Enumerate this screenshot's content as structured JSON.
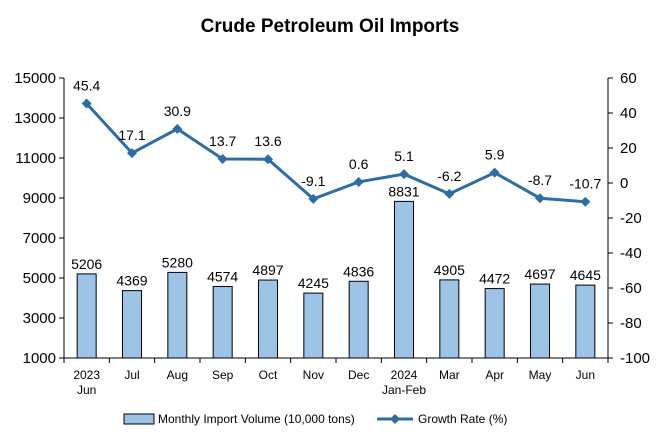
{
  "chart_data": {
    "type": "bar",
    "title": "Crude Petroleum Oil Imports",
    "categories": [
      [
        "2023",
        "Jun"
      ],
      [
        "Jul"
      ],
      [
        "Aug"
      ],
      [
        "Sep"
      ],
      [
        "Oct"
      ],
      [
        "Nov"
      ],
      [
        "Dec"
      ],
      [
        "2024",
        "Jan-Feb"
      ],
      [
        "Mar"
      ],
      [
        "Apr"
      ],
      [
        "May"
      ],
      [
        "Jun"
      ]
    ],
    "series": [
      {
        "name": "Monthly Import Volume (10,000 tons)",
        "type": "bar",
        "axis": "left",
        "values": [
          5206,
          4369,
          5280,
          4574,
          4897,
          4245,
          4836,
          8831,
          4905,
          4472,
          4697,
          4645
        ],
        "color": "#9dc3e6",
        "stroke": "#000000"
      },
      {
        "name": "Growth Rate (%)",
        "type": "line",
        "axis": "right",
        "values": [
          45.4,
          17.1,
          30.9,
          13.7,
          13.6,
          -9.1,
          0.6,
          5.1,
          -6.2,
          5.9,
          -8.7,
          -10.7
        ],
        "color": "#2e6ca4"
      }
    ],
    "y_left": {
      "min": 1000,
      "max": 15000,
      "step": 2000
    },
    "y_right": {
      "min": -100,
      "max": 60,
      "step": 20
    },
    "grid": false,
    "legend_position": "bottom"
  }
}
